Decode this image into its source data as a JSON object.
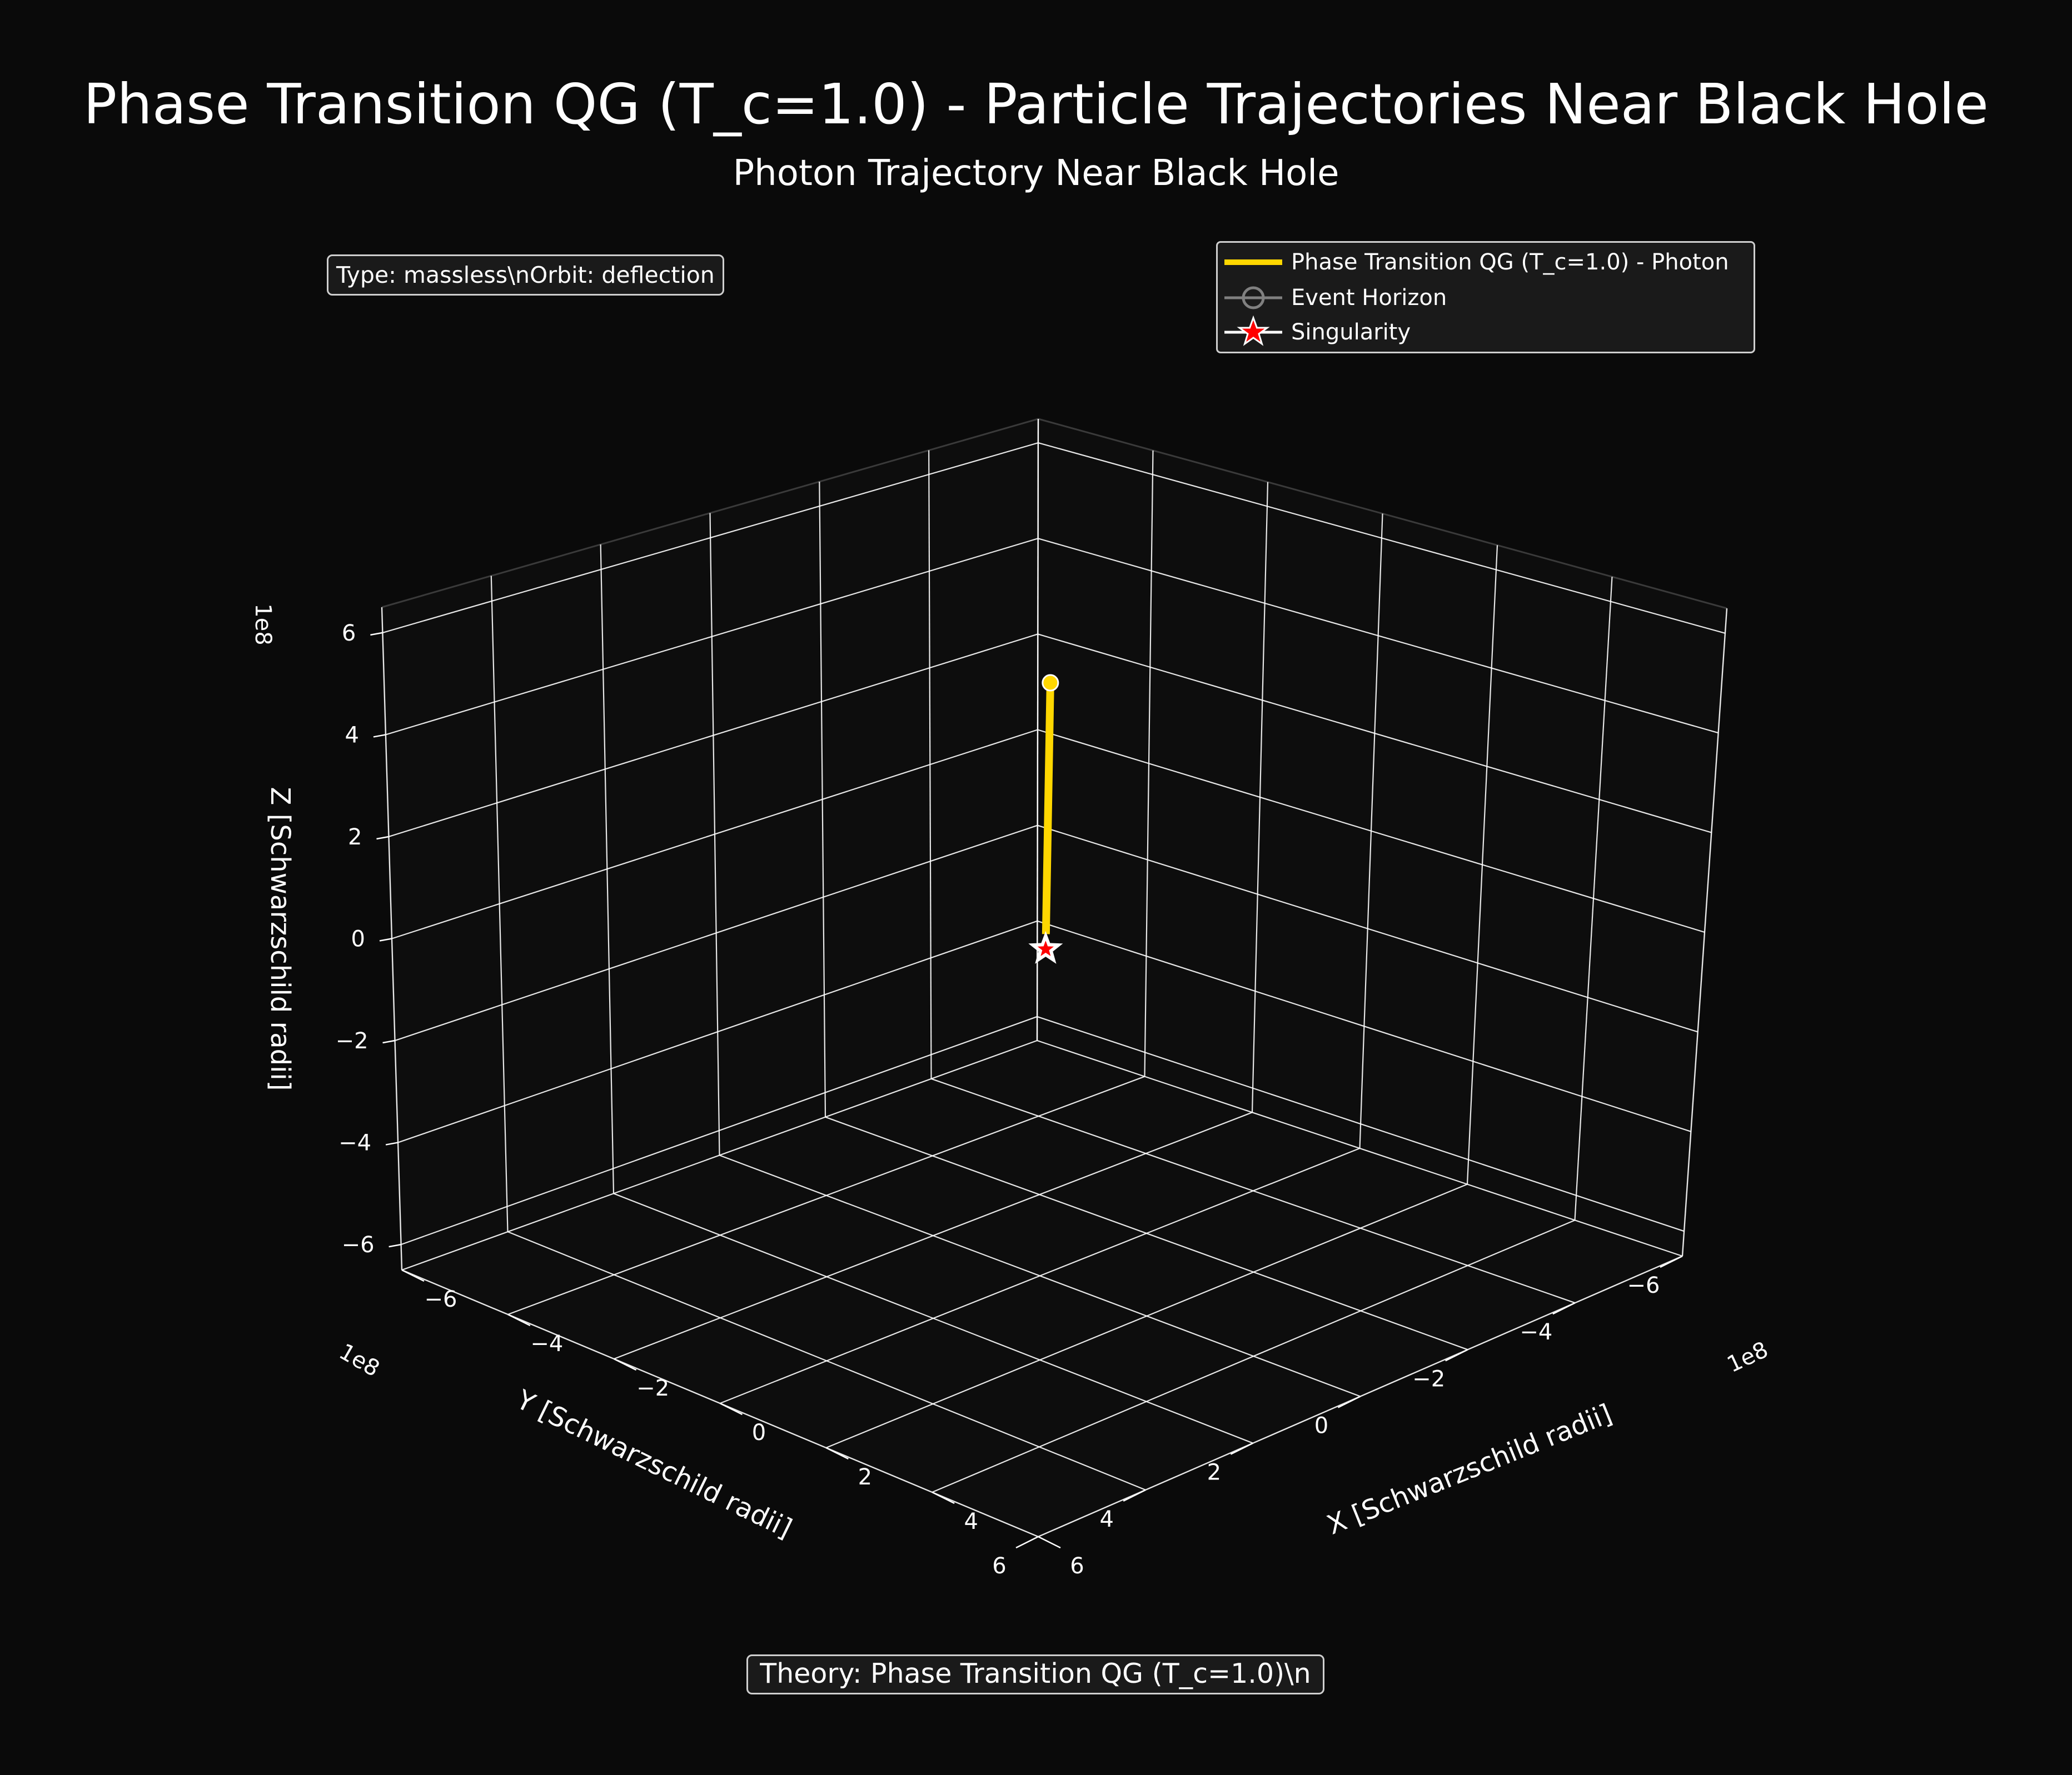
{
  "suptitle": "Phase Transition QG (T_c=1.0) - Particle Trajectories Near Black Hole",
  "subtitle": "Photon Trajectory Near Black Hole",
  "info_box": "Type: massless\\nOrbit: deflection",
  "theory_box": "Theory: Phase Transition QG (T_c=1.0)\\n",
  "colors": {
    "background": "#0a0a0a",
    "trajectory": "#ffd700",
    "singularity": "#ff0000",
    "grid": "#ffffff",
    "text": "#ffffff"
  },
  "legend": {
    "items": [
      {
        "label": "Phase Transition QG (T_c=1.0) - Photon",
        "symbol": "line",
        "color": "#ffd700"
      },
      {
        "label": "Event Horizon",
        "symbol": "circle-line",
        "color": "#808080"
      },
      {
        "label": "Singularity",
        "symbol": "star",
        "color": "#ff0000"
      }
    ],
    "placement": "top-right"
  },
  "chart_data": {
    "type": "line3d",
    "title": "Photon Trajectory Near Black Hole",
    "xlabel": "X [Schwarzschild radii]",
    "ylabel": "Y [Schwarzschild radii]",
    "zlabel": "Z [Schwarzschild radii]",
    "offset_label": "1e8",
    "xlim": [
      -6,
      6
    ],
    "ylim": [
      -6,
      6
    ],
    "zlim": [
      -6.5,
      6.5
    ],
    "xticks": [
      -6,
      -4,
      -2,
      0,
      2,
      4,
      6
    ],
    "yticks": [
      -6,
      -4,
      -2,
      0,
      2,
      4,
      6
    ],
    "zticks": [
      -6,
      -4,
      -2,
      0,
      2,
      4,
      6
    ],
    "xtick_labels": [
      "−6",
      "−4",
      "−2",
      "0",
      "2",
      "4",
      "6"
    ],
    "ytick_labels": [
      "−6",
      "−4",
      "−2",
      "0",
      "2",
      "4",
      "6"
    ],
    "ztick_labels": [
      "−6",
      "−4",
      "−2",
      "0",
      "2",
      "4",
      "6"
    ],
    "grid": true,
    "series": [
      {
        "name": "Phase Transition QG (T_c=1.0) - Photon",
        "x": [
          0,
          0
        ],
        "y": [
          0,
          0
        ],
        "z": [
          0.3,
          5.3
        ]
      }
    ],
    "start_marker": {
      "x": 0,
      "y": 0,
      "z": 5.3
    },
    "singularity": {
      "x": 0,
      "y": 0,
      "z": 0
    }
  }
}
